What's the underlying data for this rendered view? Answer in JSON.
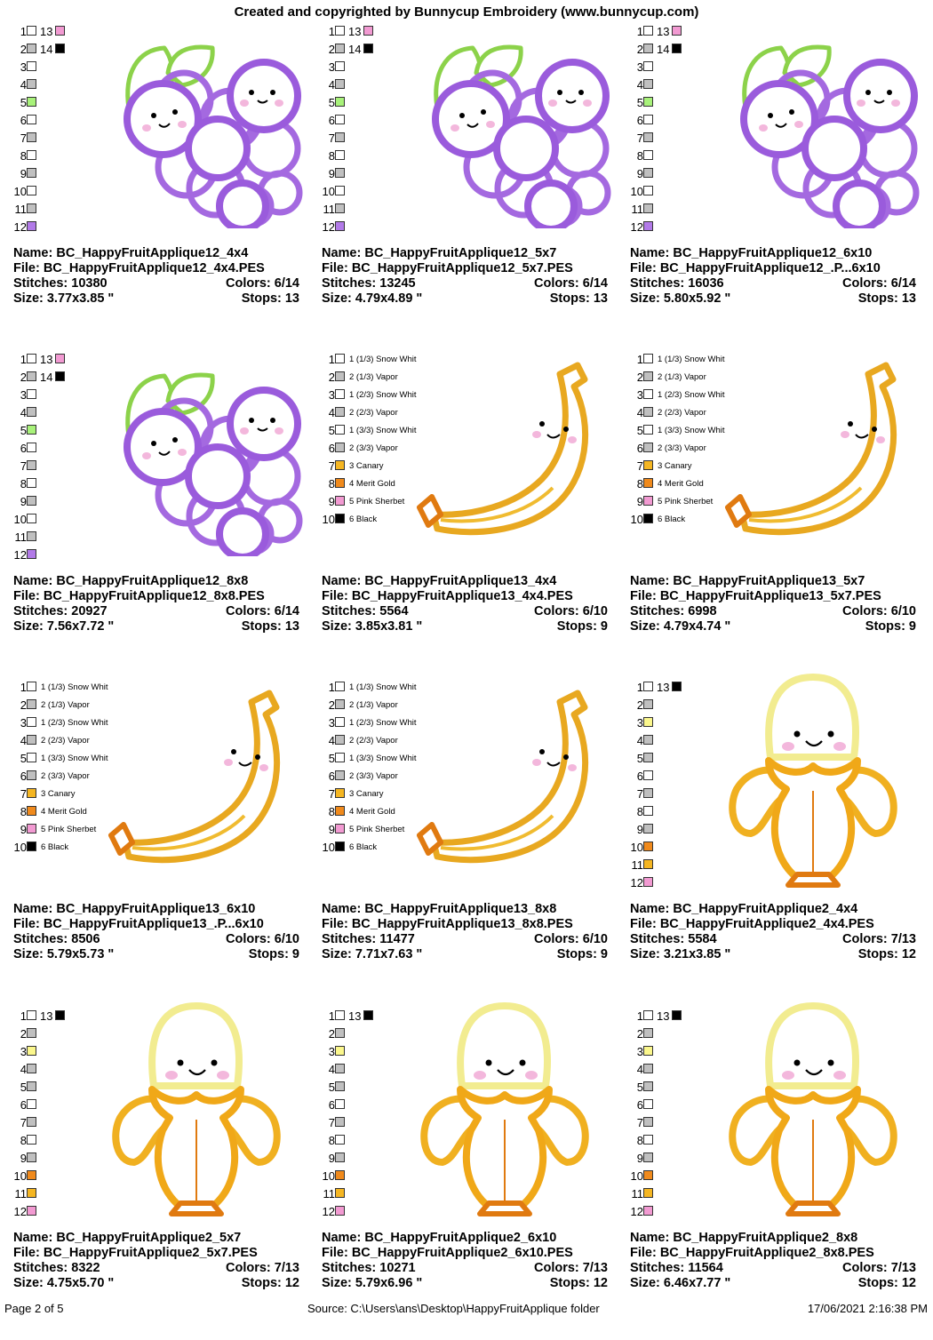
{
  "header": "Created and copyrighted by Bunnycup Embroidery (www.bunnycup.com)",
  "footer": {
    "page": "Page 2 of 5",
    "source": "Source: C:\\Users\\ans\\Desktop\\HappyFruitApplique folder",
    "date": "17/06/2021 2:16:38 PM"
  },
  "labels": {
    "name": "Name: ",
    "file": "File: ",
    "stitches": "Stitches: ",
    "colors": "Colors: ",
    "size": "Size: ",
    "stops": "Stops: "
  },
  "designs": [
    {
      "art": "grapes",
      "name": "BC_HappyFruitApplique12_4x4",
      "file": "BC_HappyFruitApplique12_4x4.PES",
      "stitches": "10380",
      "colors": "6/14",
      "size": "3.77x3.85 \"",
      "stops": "13"
    },
    {
      "art": "grapes",
      "name": "BC_HappyFruitApplique12_5x7",
      "file": "BC_HappyFruitApplique12_5x7.PES",
      "stitches": "13245",
      "colors": "6/14",
      "size": "4.79x4.89 \"",
      "stops": "13"
    },
    {
      "art": "grapes",
      "name": "BC_HappyFruitApplique12_6x10",
      "file": "BC_HappyFruitApplique12_.P...6x10",
      "stitches": "16036",
      "colors": "6/14",
      "size": "5.80x5.92 \"",
      "stops": "13"
    },
    {
      "art": "grapes",
      "name": "BC_HappyFruitApplique12_8x8",
      "file": "BC_HappyFruitApplique12_8x8.PES",
      "stitches": "20927",
      "colors": "6/14",
      "size": "7.56x7.72 \"",
      "stops": "13"
    },
    {
      "art": "banana",
      "name": "BC_HappyFruitApplique13_4x4",
      "file": "BC_HappyFruitApplique13_4x4.PES",
      "stitches": "5564",
      "colors": "6/10",
      "size": "3.85x3.81 \"",
      "stops": "9"
    },
    {
      "art": "banana",
      "name": "BC_HappyFruitApplique13_5x7",
      "file": "BC_HappyFruitApplique13_5x7.PES",
      "stitches": "6998",
      "colors": "6/10",
      "size": "4.79x4.74 \"",
      "stops": "9"
    },
    {
      "art": "banana",
      "name": "BC_HappyFruitApplique13_6x10",
      "file": "BC_HappyFruitApplique13_.P...6x10",
      "stitches": "8506",
      "colors": "6/10",
      "size": "5.79x5.73 \"",
      "stops": "9"
    },
    {
      "art": "banana",
      "name": "BC_HappyFruitApplique13_8x8",
      "file": "BC_HappyFruitApplique13_8x8.PES",
      "stitches": "11477",
      "colors": "6/10",
      "size": "7.71x7.63 \"",
      "stops": "9"
    },
    {
      "art": "peeled",
      "name": "BC_HappyFruitApplique2_4x4",
      "file": "BC_HappyFruitApplique2_4x4.PES",
      "stitches": "5584",
      "colors": "7/13",
      "size": "3.21x3.85 \"",
      "stops": "12"
    },
    {
      "art": "peeled",
      "name": "BC_HappyFruitApplique2_5x7",
      "file": "BC_HappyFruitApplique2_5x7.PES",
      "stitches": "8322",
      "colors": "7/13",
      "size": "4.75x5.70 \"",
      "stops": "12"
    },
    {
      "art": "peeled",
      "name": "BC_HappyFruitApplique2_6x10",
      "file": "BC_HappyFruitApplique2_6x10.PES",
      "stitches": "10271",
      "colors": "7/13",
      "size": "5.79x6.96 \"",
      "stops": "12"
    },
    {
      "art": "peeled",
      "name": "BC_HappyFruitApplique2_8x8",
      "file": "BC_HappyFruitApplique2_8x8.PES",
      "stitches": "11564",
      "colors": "7/13",
      "size": "6.46x7.77 \"",
      "stops": "12"
    }
  ],
  "color_lists": {
    "grapes": [
      {
        "n": "1",
        "c": "#ffffff",
        "n2": "13",
        "c2": "#f29ad2"
      },
      {
        "n": "2",
        "c": "#c0c0c0",
        "n2": "14",
        "c2": "#000000"
      },
      {
        "n": "3",
        "c": "#ffffff"
      },
      {
        "n": "4",
        "c": "#c0c0c0"
      },
      {
        "n": "5",
        "c": "#a8f27a"
      },
      {
        "n": "6",
        "c": "#ffffff"
      },
      {
        "n": "7",
        "c": "#c0c0c0"
      },
      {
        "n": "8",
        "c": "#ffffff"
      },
      {
        "n": "9",
        "c": "#c0c0c0"
      },
      {
        "n": "10",
        "c": "#ffffff"
      },
      {
        "n": "11",
        "c": "#c0c0c0"
      },
      {
        "n": "12",
        "c": "#b27ae8"
      }
    ],
    "banana": [
      {
        "n": "1",
        "c": "#ffffff",
        "label": "1 (1/3) Snow Whit"
      },
      {
        "n": "2",
        "c": "#c0c0c0",
        "label": "2 (1/3) Vapor"
      },
      {
        "n": "3",
        "c": "#ffffff",
        "label": "1 (2/3) Snow Whit"
      },
      {
        "n": "4",
        "c": "#c0c0c0",
        "label": "2 (2/3) Vapor"
      },
      {
        "n": "5",
        "c": "#ffffff",
        "label": "1 (3/3) Snow Whit"
      },
      {
        "n": "6",
        "c": "#c0c0c0",
        "label": "2 (3/3) Vapor"
      },
      {
        "n": "7",
        "c": "#f5b622",
        "label": "3 Canary"
      },
      {
        "n": "8",
        "c": "#f08a1c",
        "label": "4 Merit Gold"
      },
      {
        "n": "9",
        "c": "#f29ad2",
        "label": "5 Pink Sherbet"
      },
      {
        "n": "10",
        "c": "#000000",
        "label": "6 Black"
      }
    ],
    "peeled": [
      {
        "n": "1",
        "c": "#ffffff",
        "n2": "13",
        "c2": "#000000"
      },
      {
        "n": "2",
        "c": "#c0c0c0"
      },
      {
        "n": "3",
        "c": "#fbf78c"
      },
      {
        "n": "4",
        "c": "#c0c0c0"
      },
      {
        "n": "5",
        "c": "#c0c0c0"
      },
      {
        "n": "6",
        "c": "#ffffff"
      },
      {
        "n": "7",
        "c": "#c0c0c0"
      },
      {
        "n": "8",
        "c": "#ffffff"
      },
      {
        "n": "9",
        "c": "#c0c0c0"
      },
      {
        "n": "10",
        "c": "#f08a1c"
      },
      {
        "n": "11",
        "c": "#f5b622"
      },
      {
        "n": "12",
        "c": "#f29ad2"
      }
    ]
  }
}
